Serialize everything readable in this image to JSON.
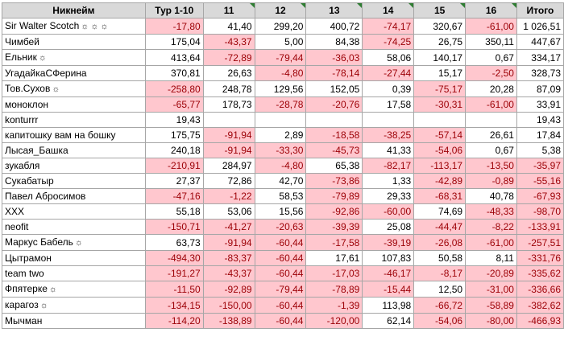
{
  "headers": [
    "Никнейм",
    "Тур 1-10",
    "11",
    "12",
    "13",
    "14",
    "15",
    "16",
    "Итого"
  ],
  "colors": {
    "negative_fill": "#ffc7ce",
    "negative_text": "#9c0006",
    "header_fill": "#d9d9d9"
  },
  "rows": [
    {
      "name": "Sir Walter Scotch",
      "icons": [
        "sun-icon",
        "sun-icon",
        "sun-icon"
      ],
      "cells": [
        "-17,80",
        "41,40",
        "299,20",
        "400,72",
        "-74,17",
        "320,67",
        "-61,00",
        "1 026,51"
      ]
    },
    {
      "name": "Чимбей",
      "icons": [],
      "cells": [
        "175,04",
        "-43,37",
        "5,00",
        "84,38",
        "-74,25",
        "26,75",
        "350,11",
        "447,67"
      ]
    },
    {
      "name": "Ельник",
      "icons": [
        "sun-icon"
      ],
      "cells": [
        "413,64",
        "-72,89",
        "-79,44",
        "-36,03",
        "58,06",
        "140,17",
        "0,67",
        "334,17"
      ]
    },
    {
      "name": "УгадайкаСФерина",
      "icons": [],
      "cells": [
        "370,81",
        "26,63",
        "-4,80",
        "-78,14",
        "-27,44",
        "15,17",
        "-2,50",
        "328,73"
      ]
    },
    {
      "name": "Тов.Сухов",
      "icons": [
        "sun-icon"
      ],
      "cells": [
        "-258,80",
        "248,78",
        "129,56",
        "152,05",
        "0,39",
        "-75,17",
        "20,28",
        "87,09"
      ]
    },
    {
      "name": "моноклон",
      "icons": [],
      "cells": [
        "-65,77",
        "178,73",
        "-28,78",
        "-20,76",
        "17,58",
        "-30,31",
        "-61,00",
        "33,91"
      ]
    },
    {
      "name": "konturrr",
      "icons": [],
      "cells": [
        "19,43",
        "",
        "",
        "",
        "",
        "",
        "",
        "19,43"
      ]
    },
    {
      "name": "капитошку вам на бошку",
      "icons": [],
      "cells": [
        "175,75",
        "-91,94",
        "2,89",
        "-18,58",
        "-38,25",
        "-57,14",
        "26,61",
        "17,84"
      ]
    },
    {
      "name": "Лысая_Башка",
      "icons": [],
      "cells": [
        "240,18",
        "-91,94",
        "-33,30",
        "-45,73",
        "41,33",
        "-54,06",
        "0,67",
        "5,38"
      ]
    },
    {
      "name": "зукабля",
      "icons": [],
      "cells": [
        "-210,91",
        "284,97",
        "-4,80",
        "65,38",
        "-82,17",
        "-113,17",
        "-13,50",
        "-35,97"
      ]
    },
    {
      "name": "Сукабатыр",
      "icons": [],
      "cells": [
        "27,37",
        "72,86",
        "42,70",
        "-73,86",
        "1,33",
        "-42,89",
        "-0,89",
        "-55,16"
      ]
    },
    {
      "name": "Павел Абросимов",
      "icons": [],
      "cells": [
        "-47,16",
        "-1,22",
        "58,53",
        "-79,89",
        "29,33",
        "-68,31",
        "40,78",
        "-67,93"
      ]
    },
    {
      "name": "XXX",
      "icons": [],
      "cells": [
        "55,18",
        "53,06",
        "15,56",
        "-92,86",
        "-60,00",
        "74,69",
        "-48,33",
        "-98,70"
      ]
    },
    {
      "name": "neofit",
      "icons": [],
      "cells": [
        "-150,71",
        "-41,27",
        "-20,63",
        "-39,39",
        "25,08",
        "-44,47",
        "-8,22",
        "-133,91"
      ]
    },
    {
      "name": "Маркус Бабель",
      "icons": [
        "sun-icon"
      ],
      "cells": [
        "63,73",
        "-91,94",
        "-60,44",
        "-17,58",
        "-39,19",
        "-26,08",
        "-61,00",
        "-257,51"
      ]
    },
    {
      "name": "Цытрамон",
      "icons": [],
      "cells": [
        "-494,30",
        "-83,37",
        "-60,44",
        "17,61",
        "107,83",
        "50,58",
        "8,11",
        "-331,76"
      ]
    },
    {
      "name": "team two",
      "icons": [],
      "cells": [
        "-191,27",
        "-43,37",
        "-60,44",
        "-17,03",
        "-46,17",
        "-8,17",
        "-20,89",
        "-335,62"
      ]
    },
    {
      "name": "Фпятерке",
      "icons": [
        "sun-icon"
      ],
      "cells": [
        "-11,50",
        "-92,89",
        "-79,44",
        "-78,89",
        "-15,44",
        "12,50",
        "-31,00",
        "-336,66"
      ]
    },
    {
      "name": "карагоз",
      "icons": [
        "sun-icon"
      ],
      "cells": [
        "-134,15",
        "-150,00",
        "-60,44",
        "-1,39",
        "113,98",
        "-66,72",
        "-58,89",
        "-382,62"
      ]
    },
    {
      "name": "Мычман",
      "icons": [],
      "cells": [
        "-114,20",
        "-138,89",
        "-60,44",
        "-120,00",
        "62,14",
        "-54,06",
        "-80,00",
        "-466,93"
      ]
    }
  ]
}
